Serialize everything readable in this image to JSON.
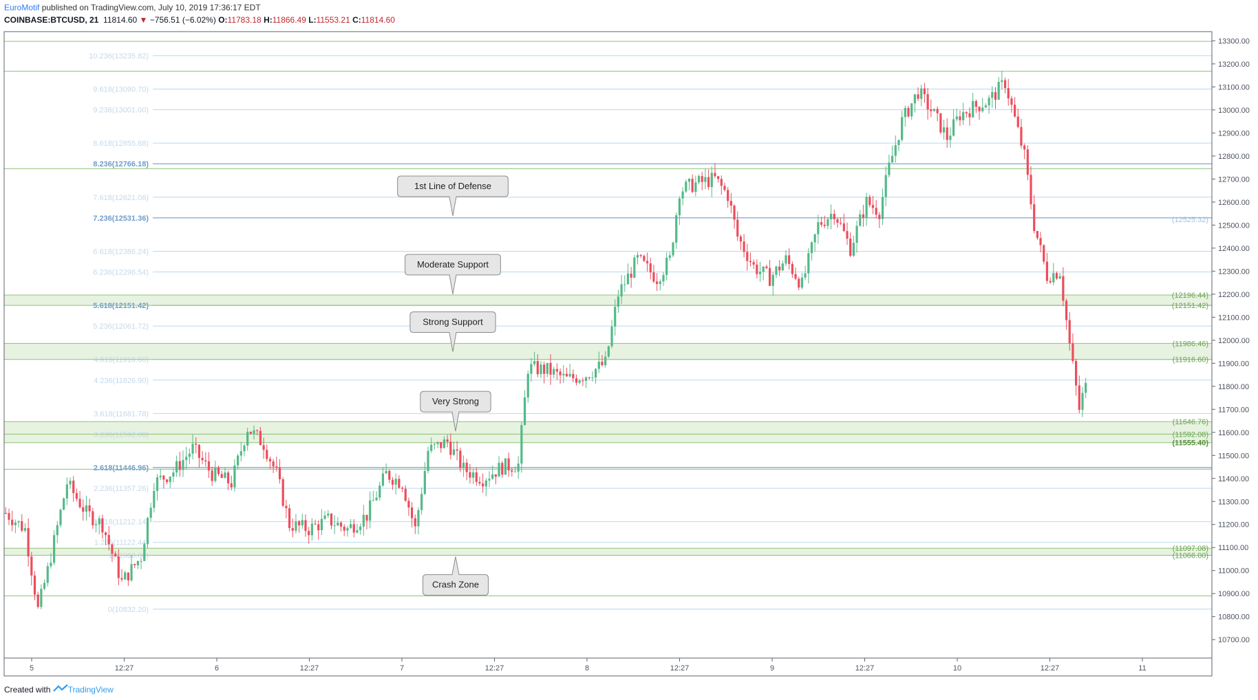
{
  "header": {
    "author": "EuroMotif",
    "published": " published on TradingView.com, July 10, 2019 17:36:17 EDT",
    "symbol": "COINBASE:BTCUSD, 21",
    "last": "11814.60",
    "change": "−756.51 (−6.02%)",
    "o_label": "O:",
    "o_value": "11783.18",
    "h_label": "H:",
    "h_value": "11866.49",
    "l_label": "L:",
    "l_value": "11553.21",
    "c_label": "C:",
    "c_value": "11814.60"
  },
  "footer": {
    "created_with": "Created with",
    "brand": "TradingView"
  },
  "colors": {
    "up": "#53b987",
    "down": "#eb4d5c",
    "green_line": "#8cc176",
    "zone_fill": "#e7f2e0",
    "fib_line": "#b9d8ee",
    "fib_strong": "#6f9ccb"
  },
  "chart_data": {
    "type": "candlestick",
    "y_range": [
      10620,
      13340
    ],
    "y_ticks": [
      "13300.00",
      "13200.00",
      "13100.00",
      "13000.00",
      "12900.00",
      "12800.00",
      "12700.00",
      "12600.00",
      "12500.00",
      "12400.00",
      "12300.00",
      "12200.00",
      "12100.00",
      "12000.00",
      "11900.00",
      "11800.00",
      "11700.00",
      "11600.00",
      "11500.00",
      "11400.00",
      "11300.00",
      "11200.00",
      "11100.00",
      "11000.00",
      "10900.00",
      "10800.00",
      "10700.00"
    ],
    "x_ticks": [
      "5",
      "12:27",
      "6",
      "12:27",
      "7",
      "12:27",
      "8",
      "12:27",
      "9",
      "12:27",
      "10",
      "12:27",
      "11"
    ],
    "fib_levels": [
      {
        "label": "10.236(13235.82)",
        "price": 13235.82,
        "strong": false
      },
      {
        "label": "9.618(13090.70)",
        "price": 13090.7,
        "strong": false
      },
      {
        "label": "9.236(13001.00)",
        "price": 13001.0,
        "strong": false
      },
      {
        "label": "8.618(12855.88)",
        "price": 12855.88,
        "strong": false
      },
      {
        "label": "8.236(12766.18)",
        "price": 12766.18,
        "strong": true
      },
      {
        "label": "7.618(12621.06)",
        "price": 12621.06,
        "strong": false
      },
      {
        "label": "7.236(12531.36)",
        "price": 12531.36,
        "strong": true
      },
      {
        "label": "6.618(12386.24)",
        "price": 12386.24,
        "strong": false
      },
      {
        "label": "6.236(12296.54)",
        "price": 12296.54,
        "strong": false
      },
      {
        "label": "5.618(12151.42)",
        "price": 12151.42,
        "strong": true
      },
      {
        "label": "5.236(12061.72)",
        "price": 12061.72,
        "strong": false
      },
      {
        "label": "4.618(11916.60)",
        "price": 11916.6,
        "strong": false
      },
      {
        "label": "4.236(11826.90)",
        "price": 11826.9,
        "strong": false
      },
      {
        "label": "3.618(11681.78)",
        "price": 11681.78,
        "strong": false
      },
      {
        "label": "3.236(11592.08)",
        "price": 11592.08,
        "strong": false
      },
      {
        "label": "2.618(11446.96)",
        "price": 11446.96,
        "strong": true
      },
      {
        "label": "2.236(11357.26)",
        "price": 11357.26,
        "strong": false
      },
      {
        "label": "1.618(11212.14)",
        "price": 11212.14,
        "strong": false
      },
      {
        "label": "1.236(11122.44)",
        "price": 11122.44,
        "strong": false
      },
      {
        "label": "1(11066.00)",
        "price": 11066.0,
        "strong": false
      },
      {
        "label": "0(10832.20)",
        "price": 10832.2,
        "strong": false
      }
    ],
    "green_lines": [
      13298,
      13168,
      12745,
      12196.44,
      12151.42,
      11986.46,
      11916.6,
      11646.76,
      11592.08,
      11555.4,
      11440,
      11097.08,
      11066.0,
      10890
    ],
    "zones": [
      {
        "top": 12196.44,
        "bottom": 12151.42
      },
      {
        "top": 11986.46,
        "bottom": 11916.6
      },
      {
        "top": 11646.76,
        "bottom": 11555.4
      },
      {
        "top": 11097.08,
        "bottom": 11066.0
      }
    ],
    "right_labels": [
      {
        "text": "(12525.32)",
        "price": 12525.32,
        "bold": false,
        "blue": true
      },
      {
        "text": "(12196.44)",
        "price": 12196.44,
        "bold": false
      },
      {
        "text": "(12151.42)",
        "price": 12151.42,
        "bold": false
      },
      {
        "text": "(11986.46)",
        "price": 11986.46,
        "bold": false
      },
      {
        "text": "(11916.60)",
        "price": 11916.6,
        "bold": false
      },
      {
        "text": "(11646.76)",
        "price": 11646.76,
        "bold": false
      },
      {
        "text": "(11592.08)",
        "price": 11592.08,
        "bold": false
      },
      {
        "text": "(11555.40)",
        "price": 11555.4,
        "bold": true
      },
      {
        "text": "(11097.08)",
        "price": 11097.08,
        "bold": false
      },
      {
        "text": "(11066.00)",
        "price": 11066.0,
        "bold": false
      }
    ],
    "callouts": [
      {
        "text": "1st Line of Defense",
        "pointer_price": 12540,
        "direction": "down"
      },
      {
        "text": "Moderate Support",
        "pointer_price": 12200,
        "direction": "down"
      },
      {
        "text": "Strong Support",
        "pointer_price": 11950,
        "direction": "down"
      },
      {
        "text": "Very Strong",
        "pointer_price": 11605,
        "direction": "down"
      },
      {
        "text": "Crash Zone",
        "pointer_price": 11060,
        "direction": "up"
      }
    ],
    "anchors": [
      {
        "i": 0,
        "p": 11250
      },
      {
        "i": 6,
        "p": 11180
      },
      {
        "i": 10,
        "p": 10830
      },
      {
        "i": 13,
        "p": 11000
      },
      {
        "i": 19,
        "p": 11380
      },
      {
        "i": 25,
        "p": 11250
      },
      {
        "i": 30,
        "p": 11200
      },
      {
        "i": 36,
        "p": 10950
      },
      {
        "i": 42,
        "p": 11060
      },
      {
        "i": 46,
        "p": 11380
      },
      {
        "i": 52,
        "p": 11430
      },
      {
        "i": 58,
        "p": 11530
      },
      {
        "i": 64,
        "p": 11420
      },
      {
        "i": 70,
        "p": 11380
      },
      {
        "i": 75,
        "p": 11620
      },
      {
        "i": 80,
        "p": 11550
      },
      {
        "i": 84,
        "p": 11420
      },
      {
        "i": 88,
        "p": 11200
      },
      {
        "i": 94,
        "p": 11180
      },
      {
        "i": 100,
        "p": 11220
      },
      {
        "i": 106,
        "p": 11180
      },
      {
        "i": 112,
        "p": 11240
      },
      {
        "i": 118,
        "p": 11420
      },
      {
        "i": 123,
        "p": 11380
      },
      {
        "i": 127,
        "p": 11180
      },
      {
        "i": 131,
        "p": 11520
      },
      {
        "i": 137,
        "p": 11560
      },
      {
        "i": 142,
        "p": 11440
      },
      {
        "i": 148,
        "p": 11400
      },
      {
        "i": 154,
        "p": 11450
      },
      {
        "i": 159,
        "p": 11460
      },
      {
        "i": 162,
        "p": 11880
      },
      {
        "i": 168,
        "p": 11870
      },
      {
        "i": 174,
        "p": 11830
      },
      {
        "i": 180,
        "p": 11850
      },
      {
        "i": 186,
        "p": 11900
      },
      {
        "i": 190,
        "p": 12200
      },
      {
        "i": 196,
        "p": 12350
      },
      {
        "i": 202,
        "p": 12270
      },
      {
        "i": 206,
        "p": 12350
      },
      {
        "i": 209,
        "p": 12650
      },
      {
        "i": 214,
        "p": 12680
      },
      {
        "i": 220,
        "p": 12700
      },
      {
        "i": 224,
        "p": 12630
      },
      {
        "i": 227,
        "p": 12450
      },
      {
        "i": 232,
        "p": 12320
      },
      {
        "i": 237,
        "p": 12270
      },
      {
        "i": 242,
        "p": 12350
      },
      {
        "i": 247,
        "p": 12240
      },
      {
        "i": 252,
        "p": 12500
      },
      {
        "i": 257,
        "p": 12560
      },
      {
        "i": 262,
        "p": 12400
      },
      {
        "i": 267,
        "p": 12600
      },
      {
        "i": 271,
        "p": 12560
      },
      {
        "i": 274,
        "p": 12750
      },
      {
        "i": 278,
        "p": 12950
      },
      {
        "i": 283,
        "p": 13080
      },
      {
        "i": 288,
        "p": 12980
      },
      {
        "i": 292,
        "p": 12880
      },
      {
        "i": 296,
        "p": 12980
      },
      {
        "i": 300,
        "p": 13010
      },
      {
        "i": 305,
        "p": 13040
      },
      {
        "i": 310,
        "p": 13120
      },
      {
        "i": 313,
        "p": 12960
      },
      {
        "i": 316,
        "p": 12800
      },
      {
        "i": 319,
        "p": 12500
      },
      {
        "i": 323,
        "p": 12280
      },
      {
        "i": 327,
        "p": 12300
      },
      {
        "i": 330,
        "p": 11980
      },
      {
        "i": 333,
        "p": 11700
      },
      {
        "i": 335,
        "p": 11815
      }
    ]
  }
}
